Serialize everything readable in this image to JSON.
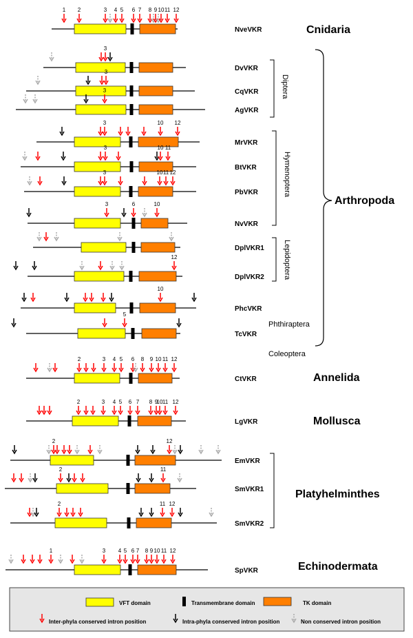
{
  "colors": {
    "vft": "#ffff00",
    "tk": "#ff7f00",
    "inter": "#ff0000",
    "intra": "#000000",
    "nonconserved": "#aaaaaa",
    "legend_bg": "#e6e6e6"
  },
  "legend": {
    "vft": "VFT domain",
    "tm": "Transmembrane domain",
    "tk": "TK domain",
    "inter": "Inter-phyla conserved intron position",
    "intra": "Intra-phyla conserved intron position",
    "non": "Non conserved intron position"
  },
  "phyla": [
    {
      "name": "Cnidaria",
      "y": 43
    },
    {
      "name": "Arthropoda",
      "y": 291
    },
    {
      "name": "Annelida",
      "y": 548
    },
    {
      "name": "Mollusca",
      "y": 611
    },
    {
      "name": "Platyhelminthes",
      "y": 717
    },
    {
      "name": "Echinodermata",
      "y": 822
    }
  ],
  "groups": [
    {
      "name": "Diptera"
    },
    {
      "name": "Hymenoptera"
    },
    {
      "name": "Lepidoptera"
    },
    {
      "name": "Phthiraptera"
    },
    {
      "name": "Coleoptera"
    }
  ],
  "genes": [
    {
      "name": "NveVKR",
      "line": [
        75,
        258
      ],
      "vft": [
        108,
        183
      ],
      "tm": 192,
      "tk": [
        203,
        255
      ],
      "arrows": [
        [
          "r",
          93,
          "1"
        ],
        [
          "r",
          115,
          "2"
        ],
        [
          "r",
          153,
          "3"
        ],
        [
          "g",
          160,
          ""
        ],
        [
          "r",
          168,
          "4"
        ],
        [
          "r",
          177,
          "5"
        ],
        [
          "r",
          194,
          "6"
        ],
        [
          "r",
          203,
          "7"
        ],
        [
          "r",
          218,
          "8"
        ],
        [
          "g",
          223,
          ""
        ],
        [
          "r",
          226,
          "9"
        ],
        [
          "g",
          230,
          ""
        ],
        [
          "r",
          234,
          "10"
        ],
        [
          "r",
          243,
          "11"
        ],
        [
          "r",
          256,
          "12"
        ]
      ]
    },
    {
      "name": "DvVKR",
      "line": [
        63,
        270
      ],
      "vft": [
        110,
        182
      ],
      "tm": 191,
      "tk": [
        202,
        251
      ],
      "arrows": [
        [
          "g",
          75,
          ""
        ],
        [
          "r",
          147,
          ""
        ],
        [
          "r",
          153,
          "3"
        ],
        [
          "k",
          160,
          ""
        ]
      ]
    },
    {
      "name": "CqVKR",
      "line": [
        38,
        283
      ],
      "vft": [
        110,
        183
      ],
      "tm": 191,
      "tk": [
        202,
        251
      ],
      "arrows": [
        [
          "g",
          55,
          ""
        ],
        [
          "k",
          128,
          ""
        ],
        [
          "r",
          148,
          ""
        ],
        [
          "r",
          154,
          "3"
        ]
      ]
    },
    {
      "name": "AgVKR",
      "line": [
        23,
        298
      ],
      "vft": [
        110,
        183
      ],
      "tm": 191,
      "tk": [
        202,
        251
      ],
      "arrows": [
        [
          "g",
          37,
          ""
        ],
        [
          "g",
          51,
          ""
        ],
        [
          "k",
          125,
          ""
        ],
        [
          "r",
          152,
          "3"
        ]
      ]
    },
    {
      "name": "MrVKR",
      "line": [
        53,
        290
      ],
      "vft": [
        108,
        175
      ],
      "tm": 190,
      "tk": [
        201,
        259
      ],
      "arrows": [
        [
          "k",
          90,
          ""
        ],
        [
          "r",
          146,
          ""
        ],
        [
          "r",
          152,
          "3"
        ],
        [
          "r",
          175,
          ""
        ],
        [
          "r",
          186,
          ""
        ],
        [
          "r",
          209,
          ""
        ],
        [
          "r",
          233,
          "10"
        ],
        [
          "r",
          258,
          "12"
        ]
      ]
    },
    {
      "name": "BtVKR",
      "line": [
        30,
        285
      ],
      "vft": [
        108,
        175
      ],
      "tm": 191,
      "tk": [
        202,
        251
      ],
      "arrows": [
        [
          "g",
          36,
          ""
        ],
        [
          "r",
          55,
          ""
        ],
        [
          "k",
          92,
          ""
        ],
        [
          "r",
          146,
          ""
        ],
        [
          "r",
          153,
          "3"
        ],
        [
          "r",
          172,
          ""
        ],
        [
          "k",
          228,
          ""
        ],
        [
          "r",
          233,
          "10"
        ],
        [
          "r",
          244,
          "11"
        ]
      ]
    },
    {
      "name": "PbVKR",
      "line": [
        35,
        285
      ],
      "vft": [
        108,
        175
      ],
      "tm": 190,
      "tk": [
        201,
        251
      ],
      "arrows": [
        [
          "g",
          43,
          ""
        ],
        [
          "r",
          58,
          ""
        ],
        [
          "k",
          93,
          ""
        ],
        [
          "r",
          146,
          ""
        ],
        [
          "r",
          152,
          "3"
        ],
        [
          "r",
          175,
          ""
        ],
        [
          "r",
          210,
          ""
        ],
        [
          "r",
          232,
          "10"
        ],
        [
          "r",
          241,
          "11"
        ],
        [
          "r",
          251,
          "12"
        ]
      ]
    },
    {
      "name": "NvVKR",
      "line": [
        40,
        272
      ],
      "vft": [
        108,
        175
      ],
      "tm": 194,
      "tk": [
        205,
        244
      ],
      "arrows": [
        [
          "k",
          42,
          ""
        ],
        [
          "r",
          155,
          "3"
        ],
        [
          "k",
          180,
          ""
        ],
        [
          "r",
          194,
          "6"
        ],
        [
          "g",
          210,
          ""
        ],
        [
          "r",
          228,
          "10"
        ]
      ]
    },
    {
      "name": "DplVKR1",
      "line": [
        48,
        262
      ],
      "vft": [
        118,
        183
      ],
      "tm": 194,
      "tk": [
        205,
        254
      ],
      "arrows": [
        [
          "g",
          57,
          ""
        ],
        [
          "r",
          67,
          ""
        ],
        [
          "g",
          82,
          ""
        ],
        [
          "g",
          174,
          ""
        ],
        [
          "g",
          249,
          ""
        ]
      ]
    },
    {
      "name": "DplVKR2",
      "line": [
        40,
        265
      ],
      "vft": [
        108,
        180
      ],
      "tm": 190,
      "tk": [
        202,
        256
      ],
      "arrows": [
        [
          "k",
          23,
          ""
        ],
        [
          "k",
          50,
          ""
        ],
        [
          "g",
          119,
          ""
        ],
        [
          "r",
          146,
          ""
        ],
        [
          "g",
          163,
          ""
        ],
        [
          "g",
          177,
          ""
        ],
        [
          "r",
          253,
          "12"
        ]
      ]
    },
    {
      "name": "PhcVKR",
      "line": [
        30,
        285
      ],
      "vft": [
        108,
        168
      ],
      "tm": 191,
      "tk": [
        203,
        255
      ],
      "arrows": [
        [
          "k",
          35,
          ""
        ],
        [
          "r",
          48,
          ""
        ],
        [
          "k",
          97,
          ""
        ],
        [
          "r",
          124,
          ""
        ],
        [
          "r",
          133,
          ""
        ],
        [
          "r",
          150,
          ""
        ],
        [
          "k",
          162,
          ""
        ],
        [
          "r",
          233,
          "10"
        ],
        [
          "k",
          282,
          ""
        ]
      ]
    },
    {
      "name": "TcVKR",
      "line": [
        38,
        262
      ],
      "vft": [
        113,
        182
      ],
      "tm": 193,
      "tk": [
        206,
        256
      ],
      "arrows": [
        [
          "k",
          20,
          ""
        ],
        [
          "r",
          152,
          ""
        ],
        [
          "r",
          181,
          "5"
        ],
        [
          "k",
          260,
          ""
        ]
      ]
    },
    {
      "name": "CtVKR",
      "line": [
        38,
        261
      ],
      "vft": [
        108,
        174
      ],
      "tm": 190,
      "tk": [
        201,
        250
      ],
      "arrows": [
        [
          "r",
          52,
          ""
        ],
        [
          "g",
          72,
          ""
        ],
        [
          "r",
          80,
          ""
        ],
        [
          "r",
          115,
          "2"
        ],
        [
          "r",
          125,
          ""
        ],
        [
          "r",
          136,
          ""
        ],
        [
          "r",
          151,
          "3"
        ],
        [
          "r",
          166,
          "4"
        ],
        [
          "r",
          176,
          "5"
        ],
        [
          "r",
          193,
          "6"
        ],
        [
          "g",
          197,
          ""
        ],
        [
          "r",
          207,
          "8"
        ],
        [
          "r",
          220,
          "9"
        ],
        [
          "r",
          230,
          "10"
        ],
        [
          "r",
          240,
          "11"
        ],
        [
          "r",
          253,
          "12"
        ]
      ]
    },
    {
      "name": "LgVKR",
      "line": [
        38,
        270
      ],
      "vft": [
        105,
        172
      ],
      "tm": 188,
      "tk": [
        200,
        249
      ],
      "arrows": [
        [
          "r",
          57,
          ""
        ],
        [
          "r",
          64,
          ""
        ],
        [
          "r",
          72,
          ""
        ],
        [
          "r",
          114,
          "2"
        ],
        [
          "r",
          125,
          ""
        ],
        [
          "r",
          135,
          ""
        ],
        [
          "r",
          150,
          "3"
        ],
        [
          "r",
          166,
          "4"
        ],
        [
          "r",
          175,
          "5"
        ],
        [
          "r",
          189,
          "6"
        ],
        [
          "r",
          200,
          "7"
        ],
        [
          "r",
          219,
          "8"
        ],
        [
          "r",
          227,
          "9"
        ],
        [
          "r",
          232,
          "10"
        ],
        [
          "r",
          240,
          "11"
        ],
        [
          "r",
          255,
          "12"
        ]
      ]
    },
    {
      "name": "EmVKR",
      "line": [
        15,
        322
      ],
      "vft": [
        73,
        136
      ],
      "tm": 186,
      "tk": [
        196,
        255
      ],
      "arrows": [
        [
          "k",
          21,
          ""
        ],
        [
          "g",
          71,
          ""
        ],
        [
          "r",
          78,
          "2"
        ],
        [
          "r",
          83,
          ""
        ],
        [
          "r",
          93,
          ""
        ],
        [
          "r",
          101,
          ""
        ],
        [
          "g",
          112,
          ""
        ],
        [
          "r",
          131,
          ""
        ],
        [
          "g",
          145,
          ""
        ],
        [
          "k",
          200,
          ""
        ],
        [
          "k",
          222,
          ""
        ],
        [
          "r",
          246,
          "12"
        ],
        [
          "g",
          254,
          ""
        ],
        [
          "k",
          262,
          ""
        ],
        [
          "g",
          292,
          ""
        ],
        [
          "g",
          317,
          ""
        ]
      ]
    },
    {
      "name": "SmVKR1",
      "line": [
        7,
        285
      ],
      "vft": [
        82,
        157
      ],
      "tm": 186,
      "tk": [
        196,
        247
      ],
      "arrows": [
        [
          "r",
          20,
          ""
        ],
        [
          "r",
          31,
          ""
        ],
        [
          "g",
          44,
          ""
        ],
        [
          "k",
          51,
          ""
        ],
        [
          "r",
          88,
          "2"
        ],
        [
          "k",
          100,
          ""
        ],
        [
          "r",
          108,
          ""
        ],
        [
          "r",
          120,
          ""
        ],
        [
          "k",
          201,
          ""
        ],
        [
          "k",
          220,
          ""
        ],
        [
          "r",
          237,
          "11"
        ],
        [
          "g",
          261,
          ""
        ]
      ]
    },
    {
      "name": "SmVKR2",
      "line": [
        15,
        315
      ],
      "vft": [
        80,
        155
      ],
      "tm": 187,
      "tk": [
        198,
        249
      ],
      "arrows": [
        [
          "r",
          43,
          ""
        ],
        [
          "g",
          48,
          ""
        ],
        [
          "k",
          53,
          ""
        ],
        [
          "r",
          86,
          "2"
        ],
        [
          "r",
          97,
          ""
        ],
        [
          "r",
          106,
          ""
        ],
        [
          "r",
          117,
          ""
        ],
        [
          "k",
          205,
          ""
        ],
        [
          "k",
          220,
          ""
        ],
        [
          "r",
          236,
          "11"
        ],
        [
          "r",
          250,
          "12"
        ],
        [
          "k",
          262,
          ""
        ],
        [
          "g",
          307,
          ""
        ]
      ]
    },
    {
      "name": "SpVKR",
      "line": [
        8,
        302
      ],
      "vft": [
        108,
        175
      ],
      "tm": 189,
      "tk": [
        200,
        256
      ],
      "arrows": [
        [
          "g",
          16,
          ""
        ],
        [
          "r",
          34,
          ""
        ],
        [
          "r",
          47,
          ""
        ],
        [
          "r",
          58,
          ""
        ],
        [
          "r",
          74,
          "1"
        ],
        [
          "g",
          88,
          ""
        ],
        [
          "r",
          105,
          ""
        ],
        [
          "g",
          119,
          ""
        ],
        [
          "r",
          151,
          "3"
        ],
        [
          "r",
          174,
          "4"
        ],
        [
          "r",
          182,
          "5"
        ],
        [
          "r",
          193,
          "6"
        ],
        [
          "r",
          200,
          "7"
        ],
        [
          "r",
          213,
          "8"
        ],
        [
          "r",
          220,
          "9"
        ],
        [
          "r",
          228,
          "10"
        ],
        [
          "r",
          238,
          "11"
        ],
        [
          "r",
          251,
          "12"
        ]
      ]
    }
  ]
}
